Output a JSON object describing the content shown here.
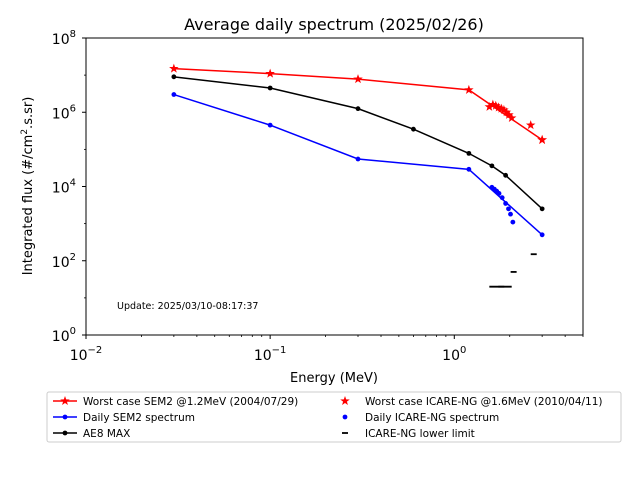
{
  "chart_data": {
    "type": "line",
    "title": "Average daily spectrum (2025/02/26)",
    "xlabel": "Energy (MeV)",
    "ylabel_main": "Integrated flux (#/cm",
    "ylabel_sup": "2",
    "ylabel_tail": ".s.sr)",
    "x_scale": "log",
    "y_scale": "log",
    "xlim": [
      0.01,
      5
    ],
    "ylim": [
      1,
      100000000
    ],
    "x_ticks": [
      {
        "value": 0.01,
        "base": "10",
        "exp": "−2"
      },
      {
        "value": 0.1,
        "base": "10",
        "exp": "−1"
      },
      {
        "value": 1,
        "base": "10",
        "exp": "0"
      }
    ],
    "y_ticks": [
      {
        "value": 1,
        "base": "10",
        "exp": "0"
      },
      {
        "value": 100,
        "base": "10",
        "exp": "2"
      },
      {
        "value": 10000,
        "base": "10",
        "exp": "4"
      },
      {
        "value": 1000000,
        "base": "10",
        "exp": "6"
      },
      {
        "value": 100000000,
        "base": "10",
        "exp": "8"
      }
    ],
    "grid": false,
    "annotation": "Update: 2025/03/10-08:17:37",
    "legend_position": "below",
    "series": [
      {
        "name": "Worst case SEM2 @1.2MeV (2004/07/29)",
        "style": "line-star",
        "color": "#ff0000",
        "x": [
          0.03,
          0.1,
          0.3,
          1.2,
          3.0
        ],
        "y": [
          15000000,
          11000000,
          7800000,
          4000000,
          180000
        ]
      },
      {
        "name": "Daily SEM2 spectrum",
        "style": "line-dot",
        "color": "#0000ff",
        "x": [
          0.03,
          0.1,
          0.3,
          1.2,
          3.0
        ],
        "y": [
          3000000,
          450000,
          55000,
          29000,
          500
        ]
      },
      {
        "name": "AE8 MAX",
        "style": "line-dot",
        "color": "#000000",
        "x": [
          0.03,
          0.1,
          0.3,
          0.6,
          1.2,
          1.6,
          1.9,
          3.0
        ],
        "y": [
          9000000,
          4500000,
          1250000,
          350000,
          78000,
          36000,
          20000,
          2500
        ]
      },
      {
        "name": "Worst case ICARE-NG @1.6MeV (2010/04/11)",
        "style": "stars",
        "color": "#ff0000",
        "x": [
          1.55,
          1.62,
          1.68,
          1.74,
          1.8,
          1.86,
          1.92,
          1.98,
          2.05,
          2.6,
          3.0
        ],
        "y": [
          1400000,
          1600000,
          1500000,
          1350000,
          1250000,
          1150000,
          1000000,
          850000,
          700000,
          450000,
          180000
        ]
      },
      {
        "name": "Daily ICARE-NG spectrum",
        "style": "dots",
        "color": "#0000ff",
        "x": [
          1.6,
          1.65,
          1.7,
          1.75,
          1.82,
          1.9,
          1.97,
          2.02,
          2.08
        ],
        "y": [
          9500,
          8500,
          7500,
          6500,
          5000,
          3500,
          2500,
          1800,
          1100
        ]
      },
      {
        "name": "ICARE-NG lower limit",
        "style": "dash",
        "color": "#000000",
        "x": [
          1.8,
          2.1,
          2.7
        ],
        "y": [
          20,
          50,
          150
        ]
      }
    ]
  }
}
